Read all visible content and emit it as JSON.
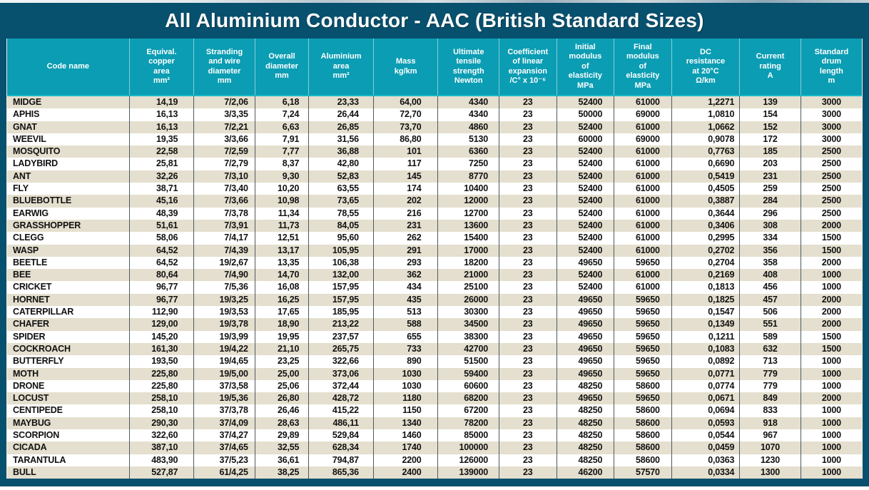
{
  "title": "All Aluminium Conductor - AAC (British Standard Sizes)",
  "colors": {
    "frame": "#07506e",
    "header_bg": "#0b9db3",
    "accent_line": "#19b7c9",
    "row_odd": "#e4dfce",
    "row_even": "#ffffff",
    "text": "#111111",
    "header_text": "#ffffff"
  },
  "table": {
    "columns": [
      {
        "id": "code-name",
        "label": "Code name"
      },
      {
        "id": "equivalent-copper-area",
        "label": "Equival.\ncopper\narea\nmm²"
      },
      {
        "id": "stranding-and-wire-diameter",
        "label": "Stranding\nand wire\ndiameter\nmm"
      },
      {
        "id": "overall-diameter",
        "label": "Overall\ndiameter\nmm"
      },
      {
        "id": "aluminium-area",
        "label": "Aluminium\narea\nmm²"
      },
      {
        "id": "mass",
        "label": "Mass\nkg/km"
      },
      {
        "id": "ultimate-tensile-strength",
        "label": "Ultimate\ntensile\nstrength\nNewton"
      },
      {
        "id": "coefficient-linear-expansion",
        "label": "Coefficient\nof linear\nexpansion\n/C° x 10⁻⁶"
      },
      {
        "id": "initial-modulus-elasticity",
        "label": "Initial\nmodulus\nof\nelasticity\nMPa"
      },
      {
        "id": "final-modulus-elasticity",
        "label": "Final\nmodulus\nof\nelasticity\nMPa"
      },
      {
        "id": "dc-resistance",
        "label": "DC\nresistance\nat 20°C\nΩ/km"
      },
      {
        "id": "current-rating",
        "label": "Current\nrating\nA"
      },
      {
        "id": "standard-drum-length",
        "label": "Standard\ndrum\nlength\nm"
      }
    ],
    "rows": [
      [
        "MIDGE",
        "14,19",
        "7/2,06",
        "6,18",
        "23,33",
        "64,00",
        "4340",
        "23",
        "52400",
        "61000",
        "1,2271",
        "139",
        "3000"
      ],
      [
        "APHIS",
        "16,13",
        "3/3,35",
        "7,24",
        "26,44",
        "72,70",
        "4340",
        "23",
        "50000",
        "69000",
        "1,0810",
        "154",
        "3000"
      ],
      [
        "GNAT",
        "16,13",
        "7/2,21",
        "6,63",
        "26,85",
        "73,70",
        "4860",
        "23",
        "52400",
        "61000",
        "1,0662",
        "152",
        "3000"
      ],
      [
        "WEEVIL",
        "19,35",
        "3/3,66",
        "7,91",
        "31,56",
        "86,80",
        "5130",
        "23",
        "60000",
        "69000",
        "0,9078",
        "172",
        "3000"
      ],
      [
        "MOSQUITO",
        "22,58",
        "7/2,59",
        "7,77",
        "36,88",
        "101",
        "6360",
        "23",
        "52400",
        "61000",
        "0,7763",
        "185",
        "2500"
      ],
      [
        "LADYBIRD",
        "25,81",
        "7/2,79",
        "8,37",
        "42,80",
        "117",
        "7250",
        "23",
        "52400",
        "61000",
        "0,6690",
        "203",
        "2500"
      ],
      [
        "ANT",
        "32,26",
        "7/3,10",
        "9,30",
        "52,83",
        "145",
        "8770",
        "23",
        "52400",
        "61000",
        "0,5419",
        "231",
        "2500"
      ],
      [
        "FLY",
        "38,71",
        "7/3,40",
        "10,20",
        "63,55",
        "174",
        "10400",
        "23",
        "52400",
        "61000",
        "0,4505",
        "259",
        "2500"
      ],
      [
        "BLUEBOTTLE",
        "45,16",
        "7/3,66",
        "10,98",
        "73,65",
        "202",
        "12000",
        "23",
        "52400",
        "61000",
        "0,3887",
        "284",
        "2500"
      ],
      [
        "EARWIG",
        "48,39",
        "7/3,78",
        "11,34",
        "78,55",
        "216",
        "12700",
        "23",
        "52400",
        "61000",
        "0,3644",
        "296",
        "2500"
      ],
      [
        "GRASSHOPPER",
        "51,61",
        "7/3,91",
        "11,73",
        "84,05",
        "231",
        "13600",
        "23",
        "52400",
        "61000",
        "0,3406",
        "308",
        "2000"
      ],
      [
        "CLEGG",
        "58,06",
        "7/4,17",
        "12,51",
        "95,60",
        "262",
        "15400",
        "23",
        "52400",
        "61000",
        "0,2995",
        "334",
        "1500"
      ],
      [
        "WASP",
        "64,52",
        "7/4,39",
        "13,17",
        "105,95",
        "291",
        "17000",
        "23",
        "52400",
        "61000",
        "0,2702",
        "356",
        "1500"
      ],
      [
        "BEETLE",
        "64,52",
        "19/2,67",
        "13,35",
        "106,38",
        "293",
        "18200",
        "23",
        "49650",
        "59650",
        "0,2704",
        "358",
        "2000"
      ],
      [
        "BEE",
        "80,64",
        "7/4,90",
        "14,70",
        "132,00",
        "362",
        "21000",
        "23",
        "52400",
        "61000",
        "0,2169",
        "408",
        "1000"
      ],
      [
        "CRICKET",
        "96,77",
        "7/5,36",
        "16,08",
        "157,95",
        "434",
        "25100",
        "23",
        "52400",
        "61000",
        "0,1813",
        "456",
        "1000"
      ],
      [
        "HORNET",
        "96,77",
        "19/3,25",
        "16,25",
        "157,95",
        "435",
        "26000",
        "23",
        "49650",
        "59650",
        "0,1825",
        "457",
        "2000"
      ],
      [
        "CATERPILLAR",
        "112,90",
        "19/3,53",
        "17,65",
        "185,95",
        "513",
        "30300",
        "23",
        "49650",
        "59650",
        "0,1547",
        "506",
        "2000"
      ],
      [
        "CHAFER",
        "129,00",
        "19/3,78",
        "18,90",
        "213,22",
        "588",
        "34500",
        "23",
        "49650",
        "59650",
        "0,1349",
        "551",
        "2000"
      ],
      [
        "SPIDER",
        "145,20",
        "19/3,99",
        "19,95",
        "237,57",
        "655",
        "38300",
        "23",
        "49650",
        "59650",
        "0,1211",
        "589",
        "1500"
      ],
      [
        "COCKROACH",
        "161,30",
        "19/4,22",
        "21,10",
        "265,75",
        "733",
        "42700",
        "23",
        "49650",
        "59650",
        "0,1083",
        "632",
        "1500"
      ],
      [
        "BUTTERFLY",
        "193,50",
        "19/4,65",
        "23,25",
        "322,66",
        "890",
        "51500",
        "23",
        "49650",
        "59650",
        "0,0892",
        "713",
        "1000"
      ],
      [
        "MOTH",
        "225,80",
        "19/5,00",
        "25,00",
        "373,06",
        "1030",
        "59400",
        "23",
        "49650",
        "59650",
        "0,0771",
        "779",
        "1000"
      ],
      [
        "DRONE",
        "225,80",
        "37/3,58",
        "25,06",
        "372,44",
        "1030",
        "60600",
        "23",
        "48250",
        "58600",
        "0,0774",
        "779",
        "1000"
      ],
      [
        "LOCUST",
        "258,10",
        "19/5,36",
        "26,80",
        "428,72",
        "1180",
        "68200",
        "23",
        "49650",
        "59650",
        "0,0671",
        "849",
        "2000"
      ],
      [
        "CENTIPEDE",
        "258,10",
        "37/3,78",
        "26,46",
        "415,22",
        "1150",
        "67200",
        "23",
        "48250",
        "58600",
        "0,0694",
        "833",
        "1000"
      ],
      [
        "MAYBUG",
        "290,30",
        "37/4,09",
        "28,63",
        "486,11",
        "1340",
        "78200",
        "23",
        "48250",
        "58600",
        "0,0593",
        "918",
        "1000"
      ],
      [
        "SCORPION",
        "322,60",
        "37/4,27",
        "29,89",
        "529,84",
        "1460",
        "85000",
        "23",
        "48250",
        "58600",
        "0,0544",
        "967",
        "1000"
      ],
      [
        "CICADA",
        "387,10",
        "37/4,65",
        "32,55",
        "628,34",
        "1740",
        "100000",
        "23",
        "48250",
        "58600",
        "0,0459",
        "1070",
        "1000"
      ],
      [
        "TARANTULA",
        "483,90",
        "37/5,23",
        "36,61",
        "794,87",
        "2200",
        "126000",
        "23",
        "48250",
        "58600",
        "0,0363",
        "1230",
        "1000"
      ],
      [
        "BULL",
        "527,87",
        "61/4,25",
        "38,25",
        "865,36",
        "2400",
        "139000",
        "23",
        "46200",
        "57570",
        "0,0334",
        "1300",
        "1000"
      ]
    ]
  }
}
